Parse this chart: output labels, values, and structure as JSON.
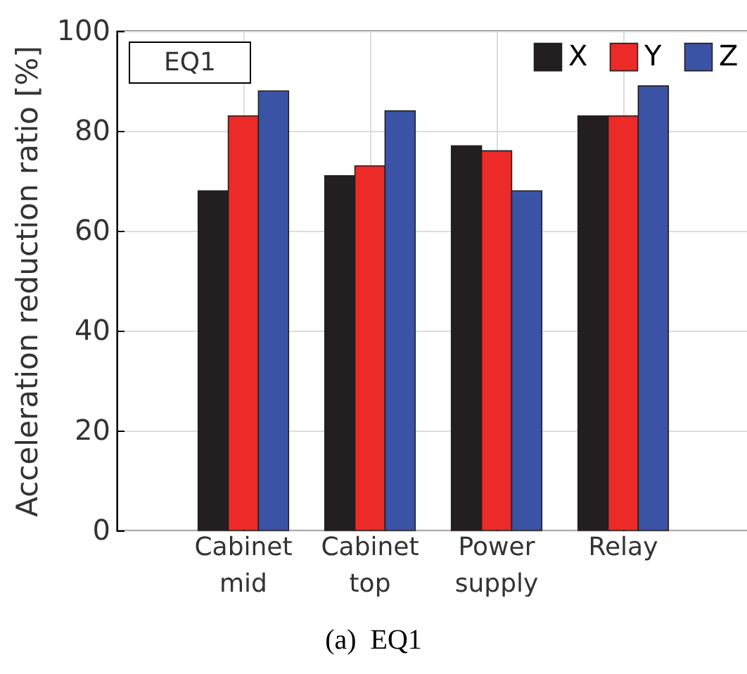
{
  "chart_data": {
    "type": "bar",
    "ylabel": "Acceleration reduction ratio [%]",
    "categories": [
      "Cabinet mid",
      "Cabinet top",
      "Power supply",
      "Relay"
    ],
    "series": [
      {
        "name": "X",
        "color": "#231f20",
        "values": [
          68,
          71,
          77,
          83
        ]
      },
      {
        "name": "Y",
        "color": "#ec2a27",
        "values": [
          83,
          73,
          76,
          83
        ]
      },
      {
        "name": "Z",
        "color": "#3a53a4",
        "values": [
          88,
          84,
          68,
          89
        ]
      }
    ],
    "ylim": [
      0,
      100
    ],
    "yticks": [
      0,
      20,
      40,
      60,
      80,
      100
    ],
    "grid": true,
    "legend": "top right",
    "annotations": [
      "EQ1",
      "(a)  EQ1"
    ]
  }
}
